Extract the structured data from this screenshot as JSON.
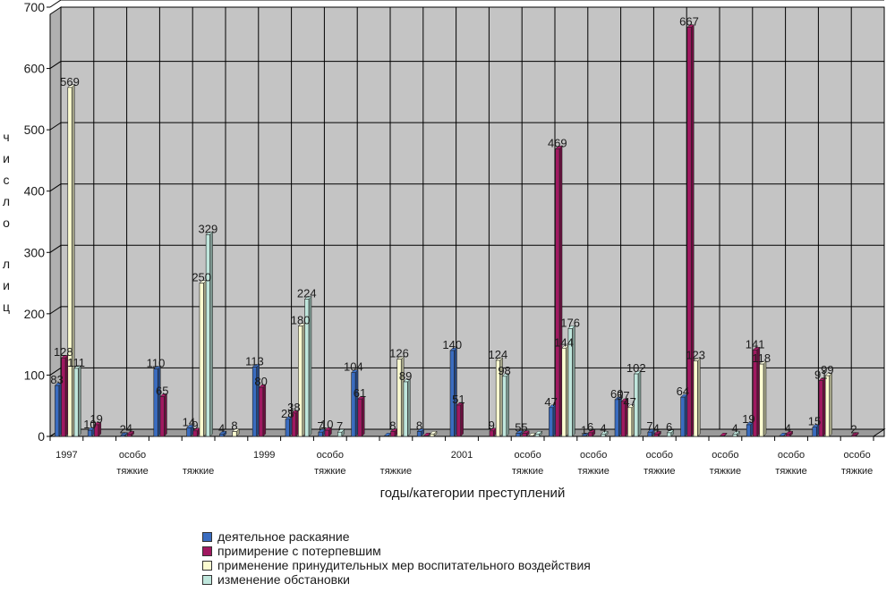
{
  "chart_data": {
    "type": "bar",
    "ylabel": "число лиц",
    "xlabel": "годы/категории преступлений",
    "ylim": [
      0,
      700
    ],
    "yticks": [
      0,
      100,
      200,
      300,
      400,
      500,
      600,
      700
    ],
    "grid": true,
    "legend_position": "bottom",
    "categories": [
      {
        "row1": "1997",
        "row2": ""
      },
      {
        "row1": "",
        "row2": ""
      },
      {
        "row1": "особо",
        "row2": "тяжкие"
      },
      {
        "row1": "",
        "row2": ""
      },
      {
        "row1": "",
        "row2": "тяжкие"
      },
      {
        "row1": "",
        "row2": ""
      },
      {
        "row1": "1999",
        "row2": ""
      },
      {
        "row1": "",
        "row2": ""
      },
      {
        "row1": "особо",
        "row2": "тяжкие"
      },
      {
        "row1": "",
        "row2": ""
      },
      {
        "row1": "",
        "row2": "тяжкие"
      },
      {
        "row1": "",
        "row2": ""
      },
      {
        "row1": "2001",
        "row2": ""
      },
      {
        "row1": "",
        "row2": ""
      },
      {
        "row1": "особо",
        "row2": "тяжкие"
      },
      {
        "row1": "",
        "row2": ""
      },
      {
        "row1": "особо",
        "row2": "тяжкие"
      },
      {
        "row1": "",
        "row2": ""
      },
      {
        "row1": "особо",
        "row2": "тяжкие"
      },
      {
        "row1": "",
        "row2": ""
      },
      {
        "row1": "особо",
        "row2": "тяжкие"
      },
      {
        "row1": "",
        "row2": ""
      },
      {
        "row1": "особо",
        "row2": "тяжкие"
      },
      {
        "row1": "",
        "row2": ""
      },
      {
        "row1": "особо",
        "row2": "тяжкие"
      }
    ],
    "series": [
      {
        "name": "деятельное раскаяние",
        "color": "#3a6cc0",
        "values": [
          83,
          10,
          2,
          110,
          14,
          4,
          113,
          28,
          7,
          104,
          1,
          8,
          140,
          0,
          5,
          47,
          1,
          60,
          7,
          64,
          0,
          19,
          1,
          15,
          0
        ],
        "labels": [
          "83",
          "10",
          "2",
          "110",
          "14",
          "4",
          "113",
          "28",
          "7",
          "104",
          "",
          "8",
          "140",
          "",
          "5",
          "47",
          "1",
          "60",
          "7",
          "64",
          "",
          "19",
          "",
          "15",
          ""
        ]
      },
      {
        "name": "примирение с потерпевшим",
        "color": "#a01860",
        "values": [
          128,
          19,
          4,
          65,
          9,
          0,
          80,
          38,
          10,
          61,
          8,
          1,
          51,
          9,
          5,
          469,
          6,
          57,
          4,
          667,
          1,
          141,
          4,
          91,
          2
        ],
        "labels": [
          "128",
          "19",
          "4",
          "65",
          "9",
          "",
          "80",
          "38",
          "10",
          "61",
          "8",
          "",
          "51",
          "9",
          "5",
          "469",
          "6",
          "57",
          "4",
          "667",
          "",
          "141",
          "4",
          "91",
          "2"
        ]
      },
      {
        "name": "применение принудительных мер воспитательного воздействия",
        "color": "#fbfbd0",
        "values": [
          569,
          0,
          0,
          0,
          250,
          8,
          0,
          180,
          0,
          0,
          126,
          4,
          0,
          124,
          1,
          144,
          0,
          47,
          0,
          123,
          0,
          118,
          0,
          99,
          0
        ],
        "labels": [
          "569",
          "",
          "",
          "",
          "250",
          "8",
          "",
          "180",
          "",
          "",
          "126",
          "",
          "",
          "124",
          "",
          "144",
          "",
          "47",
          "",
          "123",
          "",
          "118",
          "",
          "99",
          ""
        ]
      },
      {
        "name": "изменение обстановки",
        "color": "#bfe6dc",
        "values": [
          111,
          0,
          0,
          0,
          329,
          0,
          0,
          224,
          7,
          0,
          89,
          0,
          0,
          98,
          4,
          176,
          4,
          102,
          6,
          0,
          4,
          0,
          0,
          0,
          0
        ],
        "labels": [
          "111",
          "",
          "",
          "",
          "329",
          "",
          "",
          "224",
          "7",
          "",
          "89",
          "",
          "",
          "98",
          "",
          "176",
          "4",
          "102",
          "6",
          "",
          "4",
          "",
          "",
          "",
          ""
        ]
      }
    ]
  }
}
